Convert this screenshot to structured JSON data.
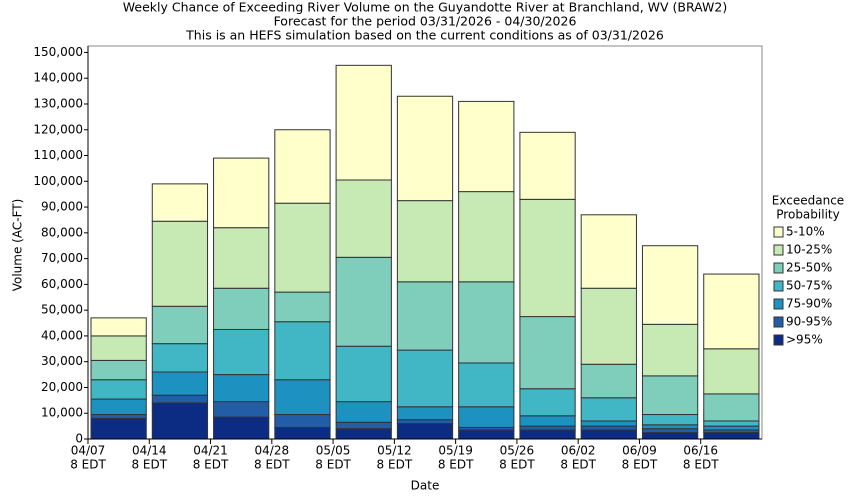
{
  "chart_data": {
    "type": "stacked-bar",
    "title": [
      "Weekly Chance of Exceeding River Volume on the Guyandotte River at Branchland, WV (BRAW2)",
      "Forecast for the period 03/31/2026 - 04/30/2026",
      "This is an HEFS simulation based on the current conditions as of 03/31/2026"
    ],
    "x_label": "Date",
    "y_label": "Volume (AC-FT)",
    "legend_title": [
      "Exceedance",
      "Probability"
    ],
    "categories": [
      "04/07",
      "04/14",
      "04/21",
      "04/28",
      "05/05",
      "05/12",
      "05/19",
      "05/26",
      "06/02",
      "06/09",
      "06/16"
    ],
    "category_sublabel": "8 EDT",
    "ylim": [
      0,
      152500
    ],
    "yticks": [
      0,
      {
        "value": 10000,
        "label": "10,000"
      },
      {
        "value": 20000,
        "label": "20,000"
      },
      {
        "value": 30000,
        "label": "30,000"
      },
      {
        "value": 40000,
        "label": "40,000"
      },
      {
        "value": 50000,
        "label": "50,000"
      },
      {
        "value": 60000,
        "label": "60,000"
      },
      {
        "value": 70000,
        "label": "70,000"
      },
      {
        "value": 80000,
        "label": "80,000"
      },
      {
        "value": 90000,
        "label": "90,000"
      },
      {
        "value": 100000,
        "label": "100,000"
      },
      {
        "value": 110000,
        "label": "110,000"
      },
      {
        "value": 120000,
        "label": "120,000"
      },
      {
        "value": 130000,
        "label": "130,000"
      },
      {
        "value": 140000,
        "label": "140,000"
      },
      {
        "value": 150000,
        "label": "150,000"
      }
    ],
    "series": [
      {
        "name": ">95%",
        "color": "#0c2c84",
        "values": [
          8000,
          14000,
          8500,
          4500,
          4000,
          6000,
          3500,
          3500,
          3500,
          2500,
          2500
        ]
      },
      {
        "name": "90-95%",
        "color": "#225ea8",
        "values": [
          1500,
          3000,
          6000,
          5000,
          2500,
          1500,
          1000,
          1500,
          1500,
          1500,
          1000
        ]
      },
      {
        "name": "75-90%",
        "color": "#1d91c0",
        "values": [
          6000,
          9000,
          10500,
          13500,
          8000,
          5000,
          8000,
          4000,
          2000,
          1500,
          1500
        ]
      },
      {
        "name": "50-75%",
        "color": "#41b6c4",
        "values": [
          7500,
          11000,
          17500,
          22500,
          21500,
          22000,
          17000,
          10500,
          9000,
          4000,
          2000
        ]
      },
      {
        "name": "25-50%",
        "color": "#7fcdbb",
        "values": [
          7500,
          14500,
          16000,
          11500,
          34500,
          26500,
          31500,
          28000,
          13000,
          15000,
          10500
        ]
      },
      {
        "name": "10-25%",
        "color": "#c7e9b4",
        "values": [
          9500,
          33000,
          23500,
          34500,
          30000,
          31500,
          35000,
          45500,
          29500,
          20000,
          17500
        ]
      },
      {
        "name": "5-10%",
        "color": "#ffffcc",
        "values": [
          7000,
          14500,
          27000,
          28500,
          44500,
          40500,
          35000,
          26000,
          28500,
          30500,
          29000
        ]
      }
    ]
  }
}
